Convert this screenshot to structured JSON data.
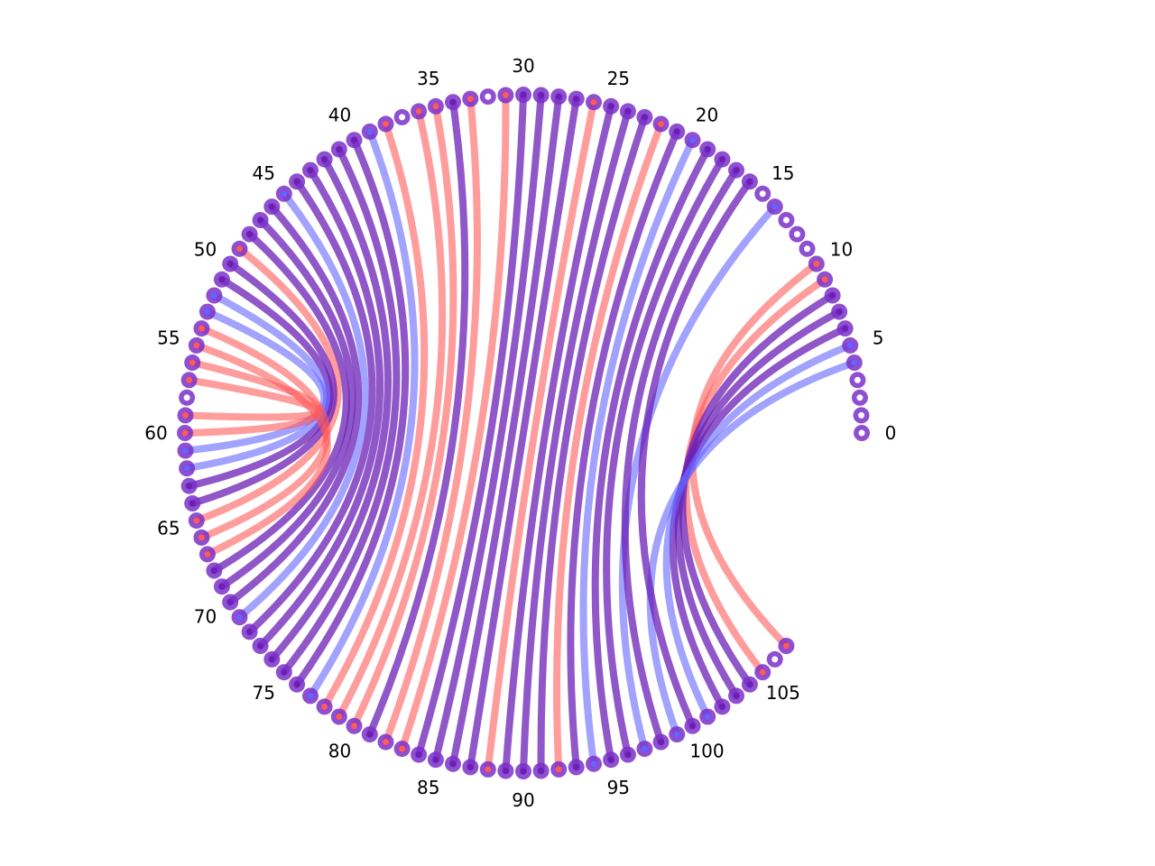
{
  "colors": {
    "red": "#ff5a5a",
    "blue": "#6464ff",
    "purple": "#6a1fb5",
    "node_ring": "#7a30c8",
    "background": "#ffffff"
  },
  "diagram": {
    "type": "arc-diagram",
    "node_count": 108,
    "node_labels": [
      "0",
      "5",
      "10",
      "15",
      "20",
      "25",
      "30",
      "35",
      "40",
      "45",
      "50",
      "55",
      "60",
      "65",
      "70",
      "75",
      "80",
      "85",
      "90",
      "95",
      "100",
      "105"
    ],
    "links": [
      {
        "from": 10,
        "to": 107,
        "color": "red"
      },
      {
        "from": 9,
        "to": 105,
        "color": "red"
      },
      {
        "from": 8,
        "to": 104,
        "color": "purple"
      },
      {
        "from": 7,
        "to": 103,
        "color": "purple"
      },
      {
        "from": 6,
        "to": 102,
        "color": "purple"
      },
      {
        "from": 5,
        "to": 101,
        "color": "blue"
      },
      {
        "from": 4,
        "to": 99,
        "color": "blue"
      },
      {
        "from": 14,
        "to": 97,
        "color": "blue"
      },
      {
        "from": 16,
        "to": 100,
        "color": "purple"
      },
      {
        "from": 17,
        "to": 98,
        "color": "purple"
      },
      {
        "from": 18,
        "to": 96,
        "color": "purple"
      },
      {
        "from": 19,
        "to": 95,
        "color": "purple"
      },
      {
        "from": 20,
        "to": 94,
        "color": "blue"
      },
      {
        "from": 21,
        "to": 93,
        "color": "purple"
      },
      {
        "from": 22,
        "to": 92,
        "color": "red"
      },
      {
        "from": 23,
        "to": 91,
        "color": "purple"
      },
      {
        "from": 24,
        "to": 90,
        "color": "purple"
      },
      {
        "from": 25,
        "to": 89,
        "color": "purple"
      },
      {
        "from": 26,
        "to": 88,
        "color": "red"
      },
      {
        "from": 27,
        "to": 87,
        "color": "purple"
      },
      {
        "from": 28,
        "to": 86,
        "color": "purple"
      },
      {
        "from": 29,
        "to": 85,
        "color": "purple"
      },
      {
        "from": 30,
        "to": 84,
        "color": "purple"
      },
      {
        "from": 31,
        "to": 83,
        "color": "red"
      },
      {
        "from": 33,
        "to": 82,
        "color": "red"
      },
      {
        "from": 34,
        "to": 81,
        "color": "purple"
      },
      {
        "from": 35,
        "to": 80,
        "color": "red"
      },
      {
        "from": 36,
        "to": 79,
        "color": "red"
      },
      {
        "from": 38,
        "to": 78,
        "color": "red"
      },
      {
        "from": 39,
        "to": 77,
        "color": "blue"
      },
      {
        "from": 40,
        "to": 76,
        "color": "purple"
      },
      {
        "from": 41,
        "to": 75,
        "color": "purple"
      },
      {
        "from": 42,
        "to": 74,
        "color": "purple"
      },
      {
        "from": 43,
        "to": 73,
        "color": "purple"
      },
      {
        "from": 44,
        "to": 72,
        "color": "purple"
      },
      {
        "from": 45,
        "to": 71,
        "color": "blue"
      },
      {
        "from": 46,
        "to": 70,
        "color": "purple"
      },
      {
        "from": 47,
        "to": 69,
        "color": "purple"
      },
      {
        "from": 48,
        "to": 68,
        "color": "purple"
      },
      {
        "from": 49,
        "to": 65,
        "color": "red"
      },
      {
        "from": 50,
        "to": 64,
        "color": "purple"
      },
      {
        "from": 51,
        "to": 63,
        "color": "purple"
      },
      {
        "from": 52,
        "to": 62,
        "color": "blue"
      },
      {
        "from": 53,
        "to": 61,
        "color": "blue"
      },
      {
        "from": 54,
        "to": 66,
        "color": "red"
      },
      {
        "from": 55,
        "to": 67,
        "color": "red"
      },
      {
        "from": 56,
        "to": 60,
        "color": "red"
      },
      {
        "from": 57,
        "to": 59,
        "color": "red"
      }
    ]
  }
}
